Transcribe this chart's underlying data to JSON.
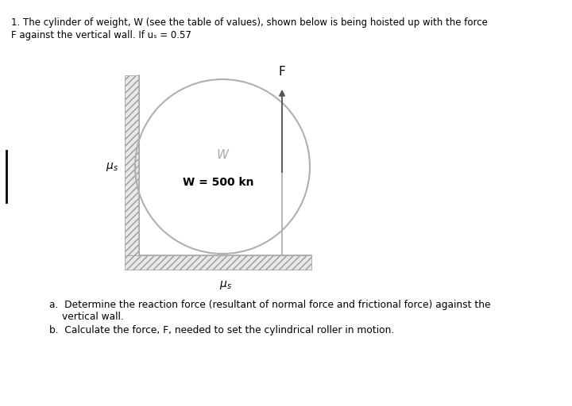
{
  "title_line1": "1. The cylinder of weight, W (see the table of values), shown below is being hoisted up with the force",
  "title_line2": "F against the vertical wall. If uₛ = 0.57",
  "weight_label": "W",
  "weight_value_label": "W = 500 kn",
  "F_label": "F",
  "question_a": "a.  Determine the reaction force (resultant of normal force and frictional force) against the\n      vertical wall.",
  "question_b": "b.  Calculate the force, F, needed to set the cylindrical roller in motion.",
  "bg_color": "#ffffff",
  "text_color": "#000000",
  "line_color": "#aaaaaa",
  "hatch_color": "#999999"
}
